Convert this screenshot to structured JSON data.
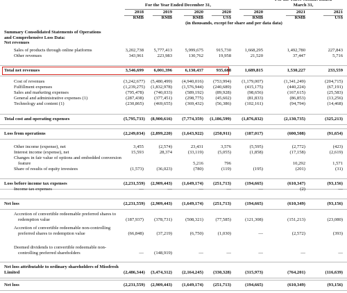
{
  "header": {
    "three_months_title": "For the Three Months Ended",
    "three_months_date": "March 31,",
    "year_title": "For the Year Ended December 31,",
    "years": [
      "2018",
      "2019",
      "2020",
      "2020",
      "2020",
      "2021",
      "2021"
    ],
    "currencies": [
      "RMB",
      "RMB",
      "RMB",
      "US$",
      "RMB",
      "RMB",
      "US$"
    ],
    "unit_note": "(in thousands, except for share and per data data)"
  },
  "table": {
    "rows": [
      {
        "label": "Summary Consolidated Statements of Operations and Comprehensive Loss Data:"
      },
      {
        "label": "Net revenues"
      },
      {
        "label": "Sales of products through online platforms",
        "values": [
          "3,202,738",
          "5,777,413",
          "5,999,675",
          "915,730",
          "1,668,295",
          "1,492,780",
          "227,843"
        ]
      },
      {
        "label": "Other revenues",
        "values": [
          "343,961",
          "223,983",
          "130,762",
          "19,958",
          "21,520",
          "37,447",
          "5,716"
        ]
      },
      {
        "label": "Total net revenues",
        "values": [
          "3,546,699",
          "6,001,396",
          "6,130,437",
          "935,688",
          "1,689,815",
          "1,530,227",
          "233,559"
        ]
      },
      {
        "label": "Cost of revenues",
        "values": [
          "(3,242,677)",
          "(5,480,499)",
          "(4,940,016)",
          "(753,994)",
          "(1,179,007)",
          "(1,341,249)",
          "(204,715)"
        ]
      },
      {
        "label": "Fulfillment expenses",
        "values": [
          "(1,239,275)",
          "(1,832,978)",
          "(1,576,944)",
          "(240,689)",
          "(415,175)",
          "(440,224)",
          "(67,191)"
        ]
      },
      {
        "label": "Sales and marketing expenses",
        "values": [
          "(795,478)",
          "(740,033)",
          "(589,192)",
          "(89,928)",
          "(98,656)",
          "(167,615)",
          "(25,583)"
        ]
      },
      {
        "label": "General and administrative expenses (1)",
        "values": [
          "(287,438)",
          "(377,451)",
          "(298,775)",
          "(45,602)",
          "(81,833)",
          "(86,853)",
          "(13,256)"
        ]
      },
      {
        "label": "Technology and content (1)",
        "values": [
          "(230,865)",
          "(469,655)",
          "(369,432)",
          "(56,386)",
          "(102,161)",
          "(94,794)",
          "(14,468)"
        ]
      },
      {
        "label": "Total cost and operating expenses",
        "values": [
          "(5,795,733)",
          "(8,900,616)",
          "(7,774,359)",
          "(1,186,599)",
          "(1,876,832)",
          "(2,130,735)",
          "(325,213)"
        ]
      },
      {
        "label": "Loss from operations",
        "values": [
          "(2,249,034)",
          "(2,899,220)",
          "(1,643,922)",
          "(250,911)",
          "(187,017)",
          "(600,508)",
          "(91,654)"
        ]
      },
      {
        "label": "Other income (expense), net",
        "values": [
          "3,455",
          "(2,574)",
          "23,431",
          "3,576",
          "(5,595)",
          "(2,772)",
          "(423)"
        ]
      },
      {
        "label": "Interest income (expense), net",
        "values": [
          "15,593",
          "28,374",
          "(33,119)",
          "(5,055)",
          "(1,858)",
          "(17,158)",
          "(2,619)"
        ]
      },
      {
        "label": "Changes in fair value of options and embedded conversion feature",
        "values": [
          null,
          null,
          "5,216",
          "796",
          null,
          "10,292",
          "1,571"
        ]
      },
      {
        "label": "Share of results of equity investees",
        "values": [
          "(1,573)",
          "(36,023)",
          "(780)",
          "(119)",
          "(195)",
          "(201)",
          "(31)"
        ]
      },
      {
        "label": "Loss before income tax expenses",
        "values": [
          "(2,231,559)",
          "(2,909,443)",
          "(1,649,174)",
          "(251,713)",
          "(194,665)",
          "(610,347)",
          "(93,156)"
        ]
      },
      {
        "label": "Income tax expenses",
        "values": [
          "—",
          "—",
          "—",
          "—",
          "—",
          "(2)",
          "—"
        ]
      },
      {
        "label": "Net loss",
        "values": [
          "(2,231,559)",
          "(2,909,443)",
          "(1,649,174)",
          "(251,713)",
          "(194,665)",
          "(610,349)",
          "(93,156)"
        ]
      },
      {
        "label": "Accretion of convertible redeemable preferred shares to redemption value",
        "values": [
          "(187,937)",
          "(378,731)",
          "(508,321)",
          "(77,585)",
          "(121,308)",
          "(151,213)",
          "(23,080)"
        ]
      },
      {
        "label": "Accretion of convertible redeemable non-controlling preferred shares to redemption value",
        "values": [
          "(66,848)",
          "(37,219)",
          "(6,750)",
          "(1,030)",
          "—",
          "(2,572)",
          "(393)"
        ]
      },
      {
        "label": "Deemed dividends to convertible redeemable non-controlling preferred shareholders",
        "values": [
          "—",
          "(148,919)",
          "—",
          "—",
          "—",
          "—",
          "—"
        ]
      },
      {
        "label": "Net loss attributable to ordinary shareholders of Missfresh Limited",
        "values": [
          "(2,486,344)",
          "(3,474,312)",
          "(2,164,245)",
          "(330,328)",
          "(315,973)",
          "(764,201)",
          "(116,639)"
        ]
      },
      {
        "label": "Net loss",
        "values": [
          "(2,231,559)",
          "(2,909,443)",
          "(1,649,174)",
          "(251,713)",
          "(194,665)",
          "(610,349)",
          "(93,156)"
        ]
      }
    ]
  }
}
